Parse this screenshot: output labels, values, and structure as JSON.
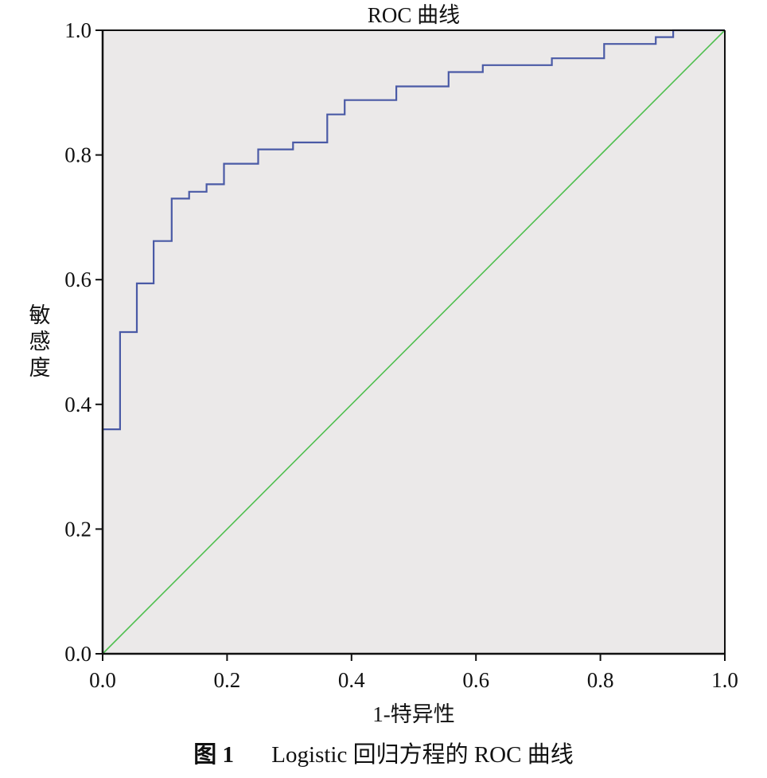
{
  "chart_data": {
    "type": "line",
    "title": "ROC 曲线",
    "xlabel": "1-特异性",
    "ylabel": "敏感度",
    "xlim": [
      0.0,
      1.0
    ],
    "ylim": [
      0.0,
      1.0
    ],
    "x_ticks": [
      "0.0",
      "0.2",
      "0.4",
      "0.6",
      "0.8",
      "1.0"
    ],
    "y_ticks": [
      "0.0",
      "0.2",
      "0.4",
      "0.6",
      "0.8",
      "1.0"
    ],
    "grid": false,
    "colors": {
      "plot_background": "#ebe9e9",
      "roc_curve": "#4a5aa6",
      "reference_line": "#4fbf4f",
      "axis": "#111111"
    },
    "series": [
      {
        "color": "#4a5aa6",
        "step": true,
        "points": [
          [
            0.0,
            0.0
          ],
          [
            0.0,
            0.36
          ],
          [
            0.028,
            0.36
          ],
          [
            0.028,
            0.516
          ],
          [
            0.055,
            0.516
          ],
          [
            0.055,
            0.594
          ],
          [
            0.082,
            0.594
          ],
          [
            0.082,
            0.662
          ],
          [
            0.111,
            0.662
          ],
          [
            0.111,
            0.73
          ],
          [
            0.139,
            0.73
          ],
          [
            0.139,
            0.741
          ],
          [
            0.167,
            0.741
          ],
          [
            0.167,
            0.753
          ],
          [
            0.195,
            0.753
          ],
          [
            0.195,
            0.786
          ],
          [
            0.25,
            0.786
          ],
          [
            0.25,
            0.809
          ],
          [
            0.306,
            0.809
          ],
          [
            0.306,
            0.82
          ],
          [
            0.361,
            0.82
          ],
          [
            0.361,
            0.865
          ],
          [
            0.389,
            0.865
          ],
          [
            0.389,
            0.888
          ],
          [
            0.472,
            0.888
          ],
          [
            0.472,
            0.91
          ],
          [
            0.556,
            0.91
          ],
          [
            0.556,
            0.933
          ],
          [
            0.611,
            0.933
          ],
          [
            0.611,
            0.944
          ],
          [
            0.722,
            0.944
          ],
          [
            0.722,
            0.955
          ],
          [
            0.806,
            0.955
          ],
          [
            0.806,
            0.978
          ],
          [
            0.889,
            0.978
          ],
          [
            0.889,
            0.989
          ],
          [
            0.917,
            0.989
          ],
          [
            0.917,
            1.0
          ],
          [
            1.0,
            1.0
          ]
        ]
      },
      {
        "color": "#4fbf4f",
        "step": false,
        "points": [
          [
            0.0,
            0.0
          ],
          [
            1.0,
            1.0
          ]
        ]
      }
    ]
  },
  "caption": {
    "label": "图 1",
    "text": "Logistic 回归方程的 ROC 曲线"
  }
}
